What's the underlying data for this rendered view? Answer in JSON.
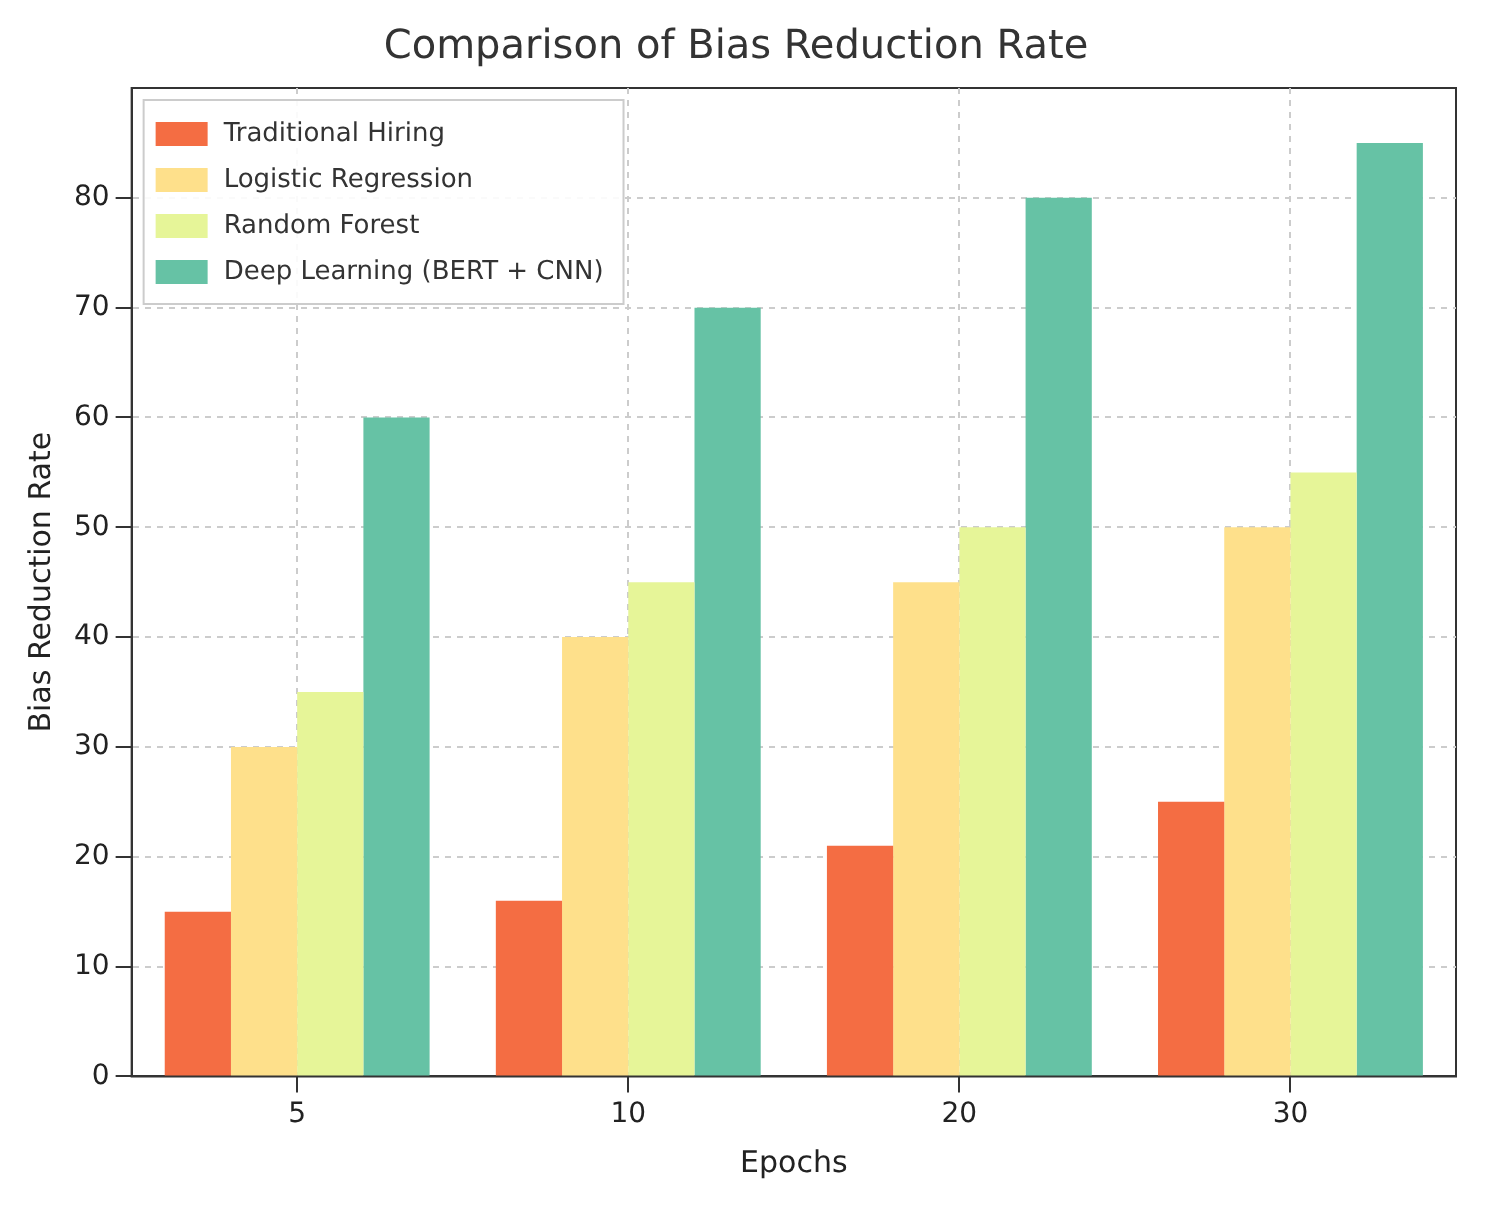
{
  "chart_data": {
    "type": "bar",
    "title": "Comparison of Bias Reduction Rate",
    "xlabel": "Epochs",
    "ylabel": "Bias Reduction Rate",
    "categories": [
      "5",
      "10",
      "20",
      "30"
    ],
    "series": [
      {
        "name": "Traditional Hiring",
        "color": "#f46d43",
        "values": [
          15,
          16,
          21,
          25
        ]
      },
      {
        "name": "Logistic Regression",
        "color": "#fee08b",
        "values": [
          30,
          40,
          45,
          50
        ]
      },
      {
        "name": "Random Forest",
        "color": "#e6f598",
        "values": [
          35,
          45,
          50,
          55
        ]
      },
      {
        "name": "Deep Learning (BERT + CNN)",
        "color": "#66c2a5",
        "values": [
          60,
          70,
          80,
          85
        ]
      }
    ],
    "ylim": [
      0,
      90
    ],
    "yticks": [
      0,
      10,
      20,
      30,
      40,
      50,
      60,
      70,
      80
    ],
    "grid": true,
    "legend": "top left"
  }
}
